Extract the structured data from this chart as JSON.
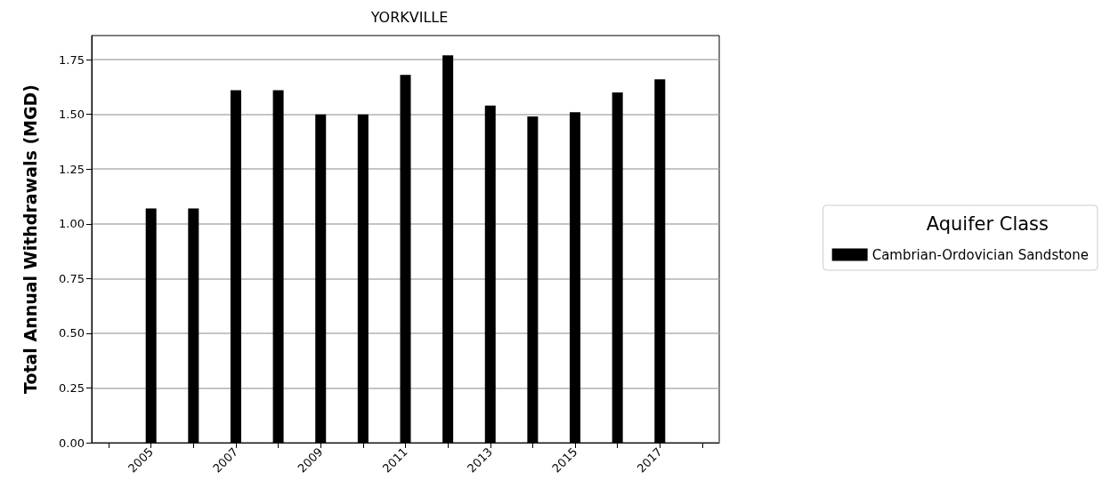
{
  "chart_data": {
    "type": "bar",
    "title": "YORKVILLE",
    "ylabel": "Total Annual Withdrawals (MGD)",
    "legend_title": "Aquifer Class",
    "x": [
      2005,
      2006,
      2007,
      2008,
      2009,
      2010,
      2011,
      2012,
      2013,
      2014,
      2015,
      2016,
      2017
    ],
    "series": [
      {
        "name": "Cambrian-Ordovician Sandstone",
        "color": "#000000",
        "values": [
          1.07,
          1.07,
          1.61,
          1.61,
          1.5,
          1.5,
          1.68,
          1.77,
          1.54,
          1.49,
          1.51,
          1.6,
          1.66
        ]
      }
    ],
    "xlim": [
      2003.6,
      2018.4
    ],
    "xticks": [
      {
        "value": 2004,
        "label": null
      },
      2005,
      {
        "value": 2006,
        "label": null
      },
      2007,
      {
        "value": 2008,
        "label": null
      },
      2009,
      {
        "value": 2010,
        "label": null
      },
      2011,
      {
        "value": 2012,
        "label": null
      },
      2013,
      {
        "value": 2014,
        "label": null
      },
      2015,
      {
        "value": 2016,
        "label": null
      },
      2017,
      {
        "value": 2018,
        "label": null
      }
    ],
    "ylim": [
      0,
      1.86
    ],
    "yticks": [
      {
        "value": 0,
        "label": "0.00"
      },
      {
        "value": 0.25,
        "label": "0.25"
      },
      {
        "value": 0.5,
        "label": "0.50"
      },
      {
        "value": 0.75,
        "label": "0.75"
      },
      {
        "value": 1,
        "label": "1.00"
      },
      {
        "value": 1.25,
        "label": "1.25"
      },
      {
        "value": 1.5,
        "label": "1.50"
      },
      {
        "value": 1.75,
        "label": "1.75"
      }
    ],
    "grid": "y",
    "legend": "right"
  }
}
